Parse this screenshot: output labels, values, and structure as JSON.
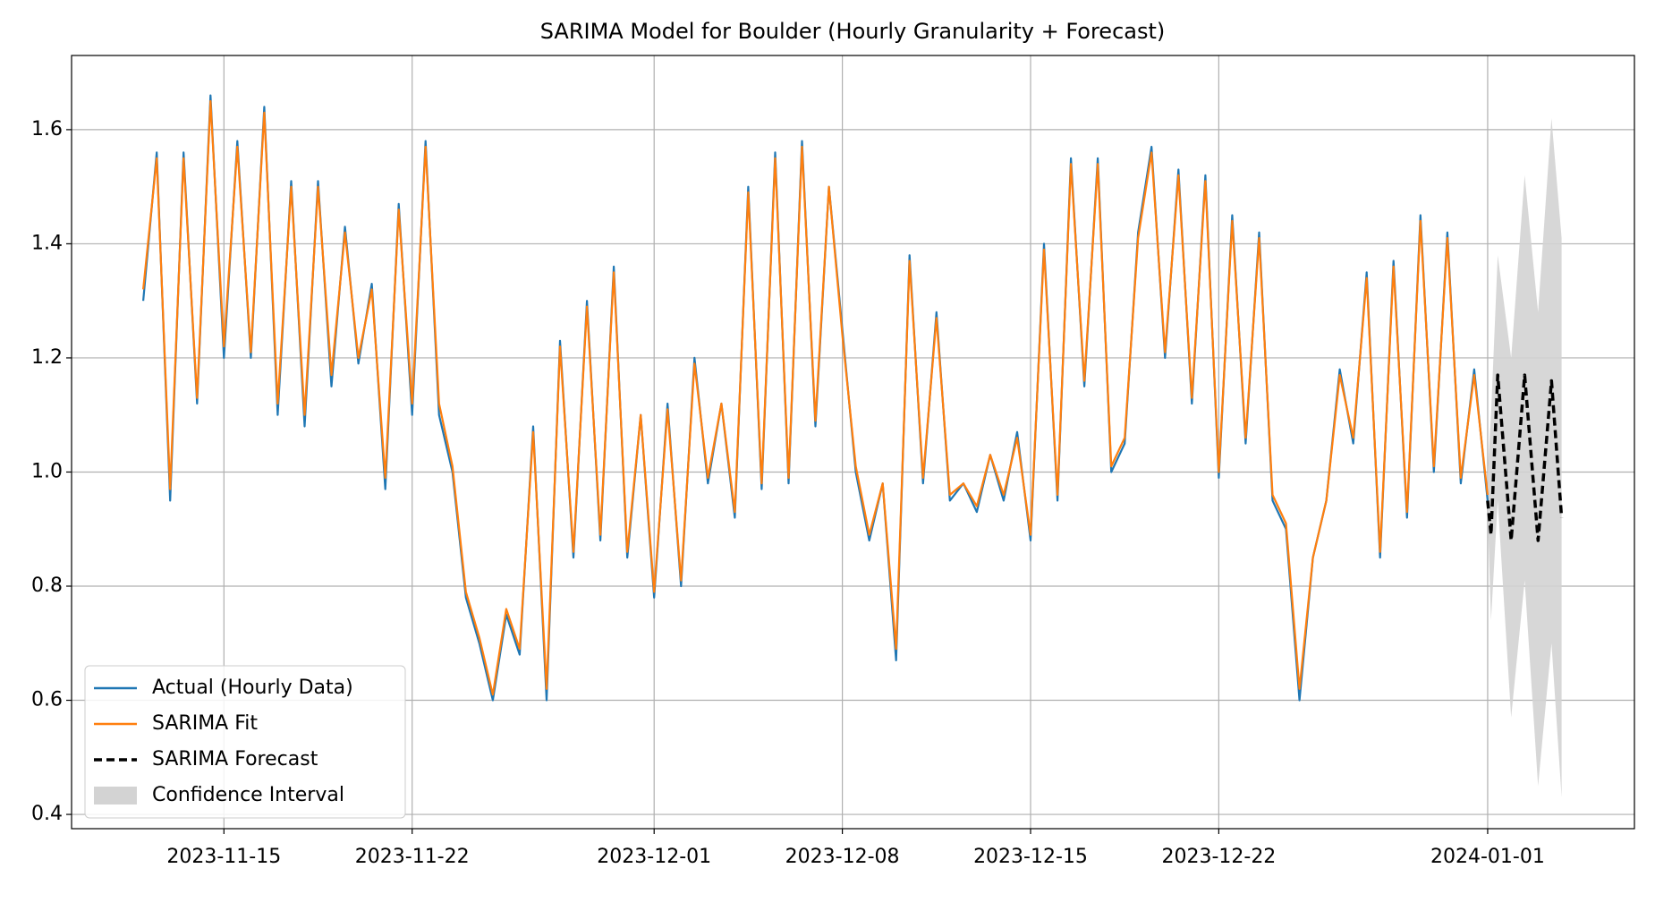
{
  "chart_data": {
    "type": "line",
    "title": "SARIMA Model for Boulder (Hourly Granularity + Forecast)",
    "legend": "lower left",
    "grid": true,
    "xlim": [
      "2023-11-09 08:00",
      "2024-01-06 11:00"
    ],
    "xticks": [
      "2023-11-15",
      "2023-11-22",
      "2023-12-01",
      "2023-12-08",
      "2023-12-15",
      "2023-12-22",
      "2024-01-01"
    ],
    "ylim": [
      0.375,
      1.73
    ],
    "yticks": [
      0.4,
      0.6,
      0.8,
      {
        "value": 1,
        "label": "1.0"
      },
      1.2,
      1.4,
      1.6
    ],
    "x": [
      "2023-11-12 00:00",
      "2023-11-12 12:00",
      "2023-11-13 00:00",
      "2023-11-13 12:00",
      "2023-11-14 00:00",
      "2023-11-14 12:00",
      "2023-11-15 00:00",
      "2023-11-15 12:00",
      "2023-11-16 00:00",
      "2023-11-16 12:00",
      "2023-11-17 00:00",
      "2023-11-17 12:00",
      "2023-11-18 00:00",
      "2023-11-18 12:00",
      "2023-11-19 00:00",
      "2023-11-19 12:00",
      "2023-11-20 00:00",
      "2023-11-20 12:00",
      "2023-11-21 00:00",
      "2023-11-21 12:00",
      "2023-11-22 00:00",
      "2023-11-22 12:00",
      "2023-11-23 00:00",
      "2023-11-23 12:00",
      "2023-11-24 00:00",
      "2023-11-24 12:00",
      "2023-11-25 00:00",
      "2023-11-25 12:00",
      "2023-11-26 00:00",
      "2023-11-26 12:00",
      "2023-11-27 00:00",
      "2023-11-27 12:00",
      "2023-11-28 00:00",
      "2023-11-28 12:00",
      "2023-11-29 00:00",
      "2023-11-29 12:00",
      "2023-11-30 00:00",
      "2023-11-30 12:00",
      "2023-12-01 00:00",
      "2023-12-01 12:00",
      "2023-12-02 00:00",
      "2023-12-02 12:00",
      "2023-12-03 00:00",
      "2023-12-03 12:00",
      "2023-12-04 00:00",
      "2023-12-04 12:00",
      "2023-12-05 00:00",
      "2023-12-05 12:00",
      "2023-12-06 00:00",
      "2023-12-06 12:00",
      "2023-12-07 00:00",
      "2023-12-07 12:00",
      "2023-12-08 00:00",
      "2023-12-08 12:00",
      "2023-12-09 00:00",
      "2023-12-09 12:00",
      "2023-12-10 00:00",
      "2023-12-10 12:00",
      "2023-12-11 00:00",
      "2023-12-11 12:00",
      "2023-12-12 00:00",
      "2023-12-12 12:00",
      "2023-12-13 00:00",
      "2023-12-13 12:00",
      "2023-12-14 00:00",
      "2023-12-14 12:00",
      "2023-12-15 00:00",
      "2023-12-15 12:00",
      "2023-12-16 00:00",
      "2023-12-16 12:00",
      "2023-12-17 00:00",
      "2023-12-17 12:00",
      "2023-12-18 00:00",
      "2023-12-18 12:00",
      "2023-12-19 00:00",
      "2023-12-19 12:00",
      "2023-12-20 00:00",
      "2023-12-20 12:00",
      "2023-12-21 00:00",
      "2023-12-21 12:00",
      "2023-12-22 00:00",
      "2023-12-22 12:00",
      "2023-12-23 00:00",
      "2023-12-23 12:00",
      "2023-12-24 00:00",
      "2023-12-24 12:00",
      "2023-12-25 00:00",
      "2023-12-25 12:00",
      "2023-12-26 00:00",
      "2023-12-26 12:00",
      "2023-12-27 00:00",
      "2023-12-27 12:00",
      "2023-12-28 00:00",
      "2023-12-28 12:00",
      "2023-12-29 00:00",
      "2023-12-29 12:00",
      "2023-12-30 00:00",
      "2023-12-30 12:00",
      "2023-12-31 00:00",
      "2023-12-31 12:00",
      "2024-01-01 00:00"
    ],
    "series": [
      {
        "name": "Actual (Hourly Data)",
        "color": "#1f77b4",
        "kind": "line",
        "values": [
          1.3,
          1.56,
          0.95,
          1.56,
          1.12,
          1.66,
          1.2,
          1.58,
          1.2,
          1.64,
          1.1,
          1.51,
          1.08,
          1.51,
          1.15,
          1.43,
          1.19,
          1.33,
          0.97,
          1.47,
          1.1,
          1.58,
          1.1,
          1.0,
          0.78,
          0.7,
          0.6,
          0.75,
          0.68,
          1.08,
          0.6,
          1.23,
          0.85,
          1.3,
          0.88,
          1.36,
          0.85,
          1.1,
          0.78,
          1.12,
          0.8,
          1.2,
          0.98,
          1.12,
          0.92,
          1.5,
          0.97,
          1.56,
          0.98,
          1.58,
          1.08,
          1.5,
          1.25,
          1.0,
          0.88,
          0.98,
          0.67,
          1.38,
          0.98,
          1.28,
          0.95,
          0.98,
          0.93,
          1.03,
          0.95,
          1.07,
          0.88,
          1.4,
          0.95,
          1.55,
          1.15,
          1.55,
          1.0,
          1.05,
          1.42,
          1.57,
          1.2,
          1.53,
          1.12,
          1.52,
          0.99,
          1.45,
          1.05,
          1.42,
          0.95,
          0.9,
          0.6,
          0.85,
          0.95,
          1.18,
          1.05,
          1.35,
          0.85,
          1.37,
          0.92,
          1.45,
          1.0,
          1.42,
          0.98,
          1.18,
          0.95
        ]
      },
      {
        "name": "SARIMA Fit",
        "color": "#ff7f0e",
        "kind": "line",
        "values": [
          1.32,
          1.55,
          0.97,
          1.55,
          1.13,
          1.65,
          1.22,
          1.57,
          1.21,
          1.63,
          1.12,
          1.5,
          1.1,
          1.5,
          1.17,
          1.42,
          1.2,
          1.32,
          0.99,
          1.46,
          1.12,
          1.57,
          1.12,
          1.01,
          0.79,
          0.71,
          0.61,
          0.76,
          0.69,
          1.07,
          0.62,
          1.22,
          0.86,
          1.29,
          0.89,
          1.35,
          0.86,
          1.1,
          0.79,
          1.11,
          0.81,
          1.19,
          0.99,
          1.12,
          0.93,
          1.49,
          0.98,
          1.55,
          0.99,
          1.57,
          1.09,
          1.5,
          1.24,
          1.01,
          0.89,
          0.98,
          0.69,
          1.37,
          0.99,
          1.27,
          0.96,
          0.98,
          0.94,
          1.03,
          0.96,
          1.06,
          0.89,
          1.39,
          0.96,
          1.54,
          1.16,
          1.54,
          1.01,
          1.06,
          1.41,
          1.56,
          1.21,
          1.52,
          1.13,
          1.51,
          1.0,
          1.44,
          1.06,
          1.41,
          0.96,
          0.91,
          0.62,
          0.85,
          0.95,
          1.17,
          1.06,
          1.34,
          0.86,
          1.36,
          0.93,
          1.44,
          1.01,
          1.41,
          0.99,
          1.17,
          0.96
        ]
      },
      {
        "name": "SARIMA Forecast",
        "color": "#000000",
        "kind": "line",
        "linestyle": "dashed",
        "x": [
          "2024-01-01 00:00",
          "2024-01-01 03:00",
          "2024-01-01 09:00",
          "2024-01-01 21:00",
          "2024-01-02 09:00",
          "2024-01-02 21:00",
          "2024-01-03 09:00",
          "2024-01-03 18:00"
        ],
        "values": [
          0.95,
          0.89,
          1.17,
          0.88,
          1.17,
          0.88,
          1.16,
          0.92
        ]
      },
      {
        "name": "Confidence Interval",
        "color": "#d3d3d3",
        "kind": "band",
        "x": [
          "2024-01-01 00:00",
          "2024-01-01 03:00",
          "2024-01-01 09:00",
          "2024-01-01 21:00",
          "2024-01-02 09:00",
          "2024-01-02 21:00",
          "2024-01-03 09:00",
          "2024-01-03 18:00"
        ],
        "lower": [
          0.93,
          0.74,
          0.95,
          0.57,
          0.81,
          0.45,
          0.7,
          0.43
        ],
        "upper": [
          1.0,
          1.1,
          1.38,
          1.2,
          1.52,
          1.28,
          1.62,
          1.41
        ]
      }
    ]
  }
}
